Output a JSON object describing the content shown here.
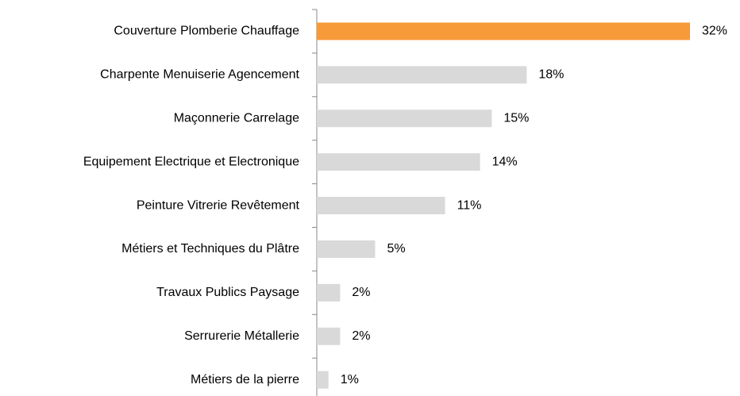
{
  "chart_data": {
    "type": "bar",
    "orientation": "horizontal",
    "categories": [
      "Couverture Plomberie Chauffage",
      "Charpente Menuiserie Agencement",
      "Maçonnerie Carrelage",
      "Equipement Electrique et Electronique",
      "Peinture Vitrerie Revêtement",
      "Métiers et Techniques du Plâtre",
      "Travaux Publics Paysage",
      "Serrurerie Métallerie",
      "Métiers de la pierre"
    ],
    "values": [
      32,
      18,
      15,
      14,
      11,
      5,
      2,
      2,
      1
    ],
    "value_labels": [
      "32%",
      "18%",
      "15%",
      "14%",
      "11%",
      "5%",
      "2%",
      "2%",
      "1%"
    ],
    "colors": [
      "#f79a3a",
      "#d9d9d9",
      "#d9d9d9",
      "#d9d9d9",
      "#d9d9d9",
      "#d9d9d9",
      "#d9d9d9",
      "#d9d9d9",
      "#d9d9d9"
    ]
  }
}
